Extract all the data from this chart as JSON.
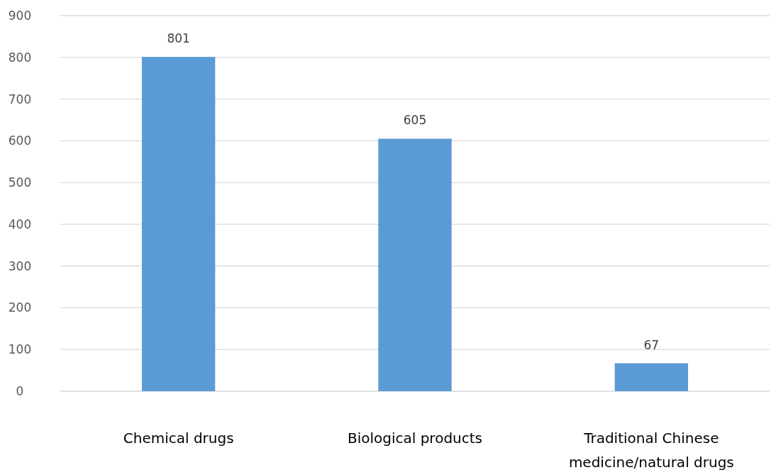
{
  "chart_data": {
    "type": "bar",
    "categories": [
      "Chemical drugs",
      "Biological products",
      "Traditional Chinese medicine/natural drugs"
    ],
    "values": [
      801,
      605,
      67
    ],
    "color": "#5b9bd5",
    "ylim": [
      0,
      900
    ],
    "yticks": [
      0,
      100,
      200,
      300,
      400,
      500,
      600,
      700,
      800,
      900
    ],
    "grid": "y",
    "data_labels": true
  }
}
